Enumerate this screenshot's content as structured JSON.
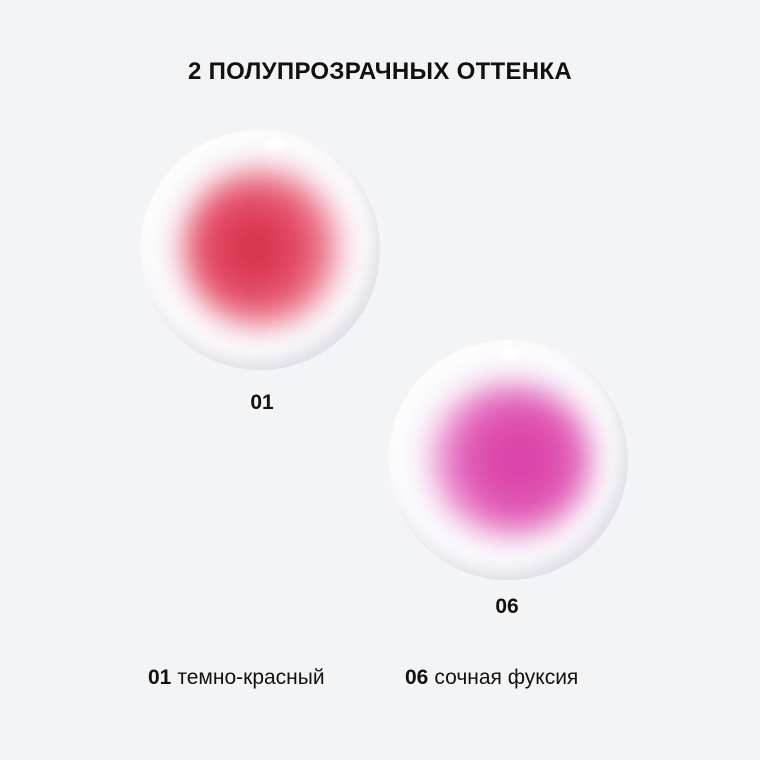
{
  "title": "2 ПОЛУПРОЗРАЧНЫХ ОТТЕНКА",
  "shades": [
    {
      "code": "01",
      "name": "темно-красный",
      "color": "#d42a42"
    },
    {
      "code": "06",
      "name": "сочная фуксия",
      "color": "#d93aa6"
    }
  ]
}
